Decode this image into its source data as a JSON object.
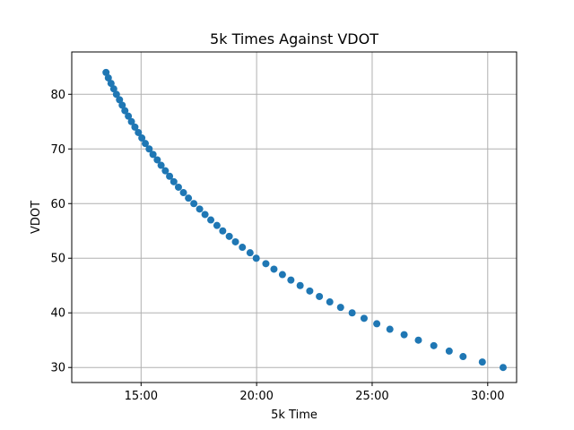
{
  "chart_data": {
    "type": "scatter",
    "title": "5k Times Against VDOT",
    "xlabel": "5k Time",
    "ylabel": "VDOT",
    "x_unit": "seconds",
    "xlim": [
      720,
      1875
    ],
    "ylim": [
      27.25,
      87.75
    ],
    "x_ticks": [
      {
        "value": 900,
        "label": "15:00"
      },
      {
        "value": 1200,
        "label": "20:00"
      },
      {
        "value": 1500,
        "label": "25:00"
      },
      {
        "value": 1800,
        "label": "30:00"
      }
    ],
    "y_ticks": [
      {
        "value": 30,
        "label": "30"
      },
      {
        "value": 40,
        "label": "40"
      },
      {
        "value": 50,
        "label": "50"
      },
      {
        "value": 60,
        "label": "60"
      },
      {
        "value": 70,
        "label": "70"
      },
      {
        "value": 80,
        "label": "80"
      }
    ],
    "grid": true,
    "color": "#1f77b4",
    "series": [
      {
        "x": [
          1840,
          1786,
          1736,
          1700,
          1660,
          1620,
          1583,
          1546,
          1512,
          1479,
          1448,
          1418,
          1390,
          1363,
          1338,
          1313,
          1289,
          1267,
          1245,
          1224,
          1199,
          1183,
          1163,
          1145,
          1129,
          1112,
          1097,
          1081,
          1066,
          1052,
          1037,
          1023,
          1010,
          997,
          985,
          974,
          963,
          952,
          942,
          931,
          921,
          911,
          902,
          893,
          884,
          875,
          867,
          858,
          851,
          844,
          836,
          829,
          822,
          815,
          809
        ],
        "y": [
          30,
          31,
          32,
          33,
          34,
          35,
          36,
          37,
          38,
          39,
          40,
          41,
          42,
          43,
          44,
          45,
          46,
          47,
          48,
          49,
          50,
          51,
          52,
          53,
          54,
          55,
          56,
          57,
          58,
          59,
          60,
          61,
          62,
          63,
          64,
          65,
          66,
          67,
          68,
          69,
          70,
          71,
          72,
          73,
          74,
          75,
          76,
          77,
          78,
          79,
          80,
          81,
          82,
          83,
          84
        ]
      }
    ]
  }
}
